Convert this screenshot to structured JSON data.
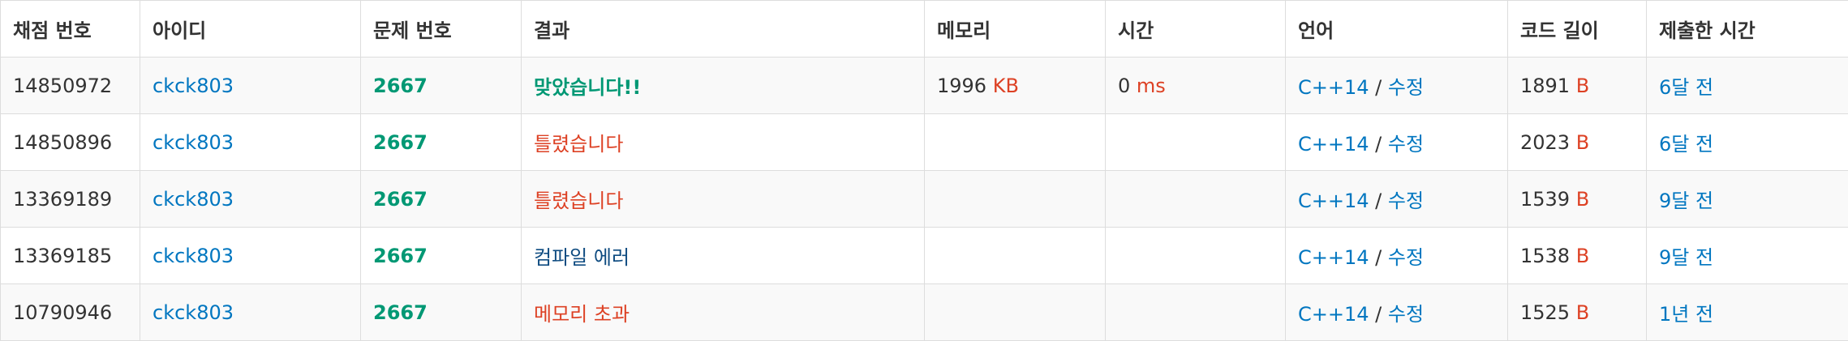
{
  "headers": {
    "submission_id": "채점 번호",
    "user_id": "아이디",
    "problem_id": "문제 번호",
    "result": "결과",
    "memory": "메모리",
    "time": "시간",
    "language": "언어",
    "code_length": "코드 길이",
    "submitted_at": "제출한 시간"
  },
  "units": {
    "memory": "KB",
    "time": "ms",
    "code_length": "B"
  },
  "colors": {
    "link": "#0076c0",
    "accepted": "#009874",
    "wrong": "#dd4124",
    "compile_error": "#0f4c81",
    "unit": "#dd4124"
  },
  "rows": [
    {
      "submission_id": "14850972",
      "user_id": "ckck803",
      "problem_id": "2667",
      "result": "맞았습니다!!",
      "memory": "1996",
      "time": "0",
      "language": "C++14",
      "lang_sep": "/",
      "edit": "수정",
      "code_length": "1891",
      "submitted_at": "6달 전"
    },
    {
      "submission_id": "14850896",
      "user_id": "ckck803",
      "problem_id": "2667",
      "result": "틀렸습니다",
      "memory": "",
      "time": "",
      "language": "C++14",
      "lang_sep": "/",
      "edit": "수정",
      "code_length": "2023",
      "submitted_at": "6달 전"
    },
    {
      "submission_id": "13369189",
      "user_id": "ckck803",
      "problem_id": "2667",
      "result": "틀렸습니다",
      "memory": "",
      "time": "",
      "language": "C++14",
      "lang_sep": "/",
      "edit": "수정",
      "code_length": "1539",
      "submitted_at": "9달 전"
    },
    {
      "submission_id": "13369185",
      "user_id": "ckck803",
      "problem_id": "2667",
      "result": "컴파일 에러",
      "memory": "",
      "time": "",
      "language": "C++14",
      "lang_sep": "/",
      "edit": "수정",
      "code_length": "1538",
      "submitted_at": "9달 전"
    },
    {
      "submission_id": "10790946",
      "user_id": "ckck803",
      "problem_id": "2667",
      "result": "메모리 초과",
      "memory": "",
      "time": "",
      "language": "C++14",
      "lang_sep": "/",
      "edit": "수정",
      "code_length": "1525",
      "submitted_at": "1년 전"
    }
  ]
}
